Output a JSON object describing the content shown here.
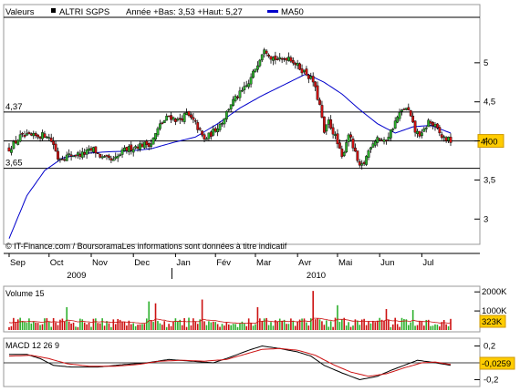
{
  "header": {
    "label": "Valeurs",
    "symbol": "ALTRI SGPS",
    "range_text": "Année +Bas: 3,53 +Haut: 5,27",
    "ma_label": "MA50",
    "ma_color": "#0000cc"
  },
  "source_note": "© IT-Finance.com / BoursoramaLes informations sont données à titre indicatif",
  "chart_data": [
    {
      "type": "candlestick",
      "title": "ALTRI SGPS",
      "x_months": [
        "Sep",
        "Oct",
        "Nov",
        "Dec",
        "Jan",
        "Fév",
        "Mar",
        "Avr",
        "Mai",
        "Jun",
        "Jul"
      ],
      "x_years": [
        "2009",
        "2010"
      ],
      "ylim": [
        2.7,
        5.5
      ],
      "yticks": [
        "5",
        "4,5",
        "4",
        "3,5",
        "3"
      ],
      "grid": false,
      "reference_lines": [
        {
          "value": 4.37,
          "label": "4,37"
        },
        {
          "value": 4.0,
          "label": "4,00",
          "badge": true
        },
        {
          "value": 3.65,
          "label": "3,65"
        }
      ],
      "last_value_label": "4,00",
      "candle_colors": {
        "up": "#2db02d",
        "down": "#cc1111"
      },
      "anchors": [
        [
          0,
          3.9
        ],
        [
          5,
          4.05
        ],
        [
          12,
          4.06
        ],
        [
          17,
          4.08
        ],
        [
          20,
          3.96
        ],
        [
          22,
          3.78
        ],
        [
          28,
          3.82
        ],
        [
          33,
          3.83
        ],
        [
          38,
          3.89
        ],
        [
          42,
          3.78
        ],
        [
          47,
          3.74
        ],
        [
          52,
          3.88
        ],
        [
          58,
          3.94
        ],
        [
          64,
          3.97
        ],
        [
          68,
          4.2
        ],
        [
          72,
          4.32
        ],
        [
          76,
          4.26
        ],
        [
          80,
          4.34
        ],
        [
          84,
          4.22
        ],
        [
          88,
          4.01
        ],
        [
          92,
          4.12
        ],
        [
          96,
          4.25
        ],
        [
          100,
          4.48
        ],
        [
          104,
          4.6
        ],
        [
          108,
          4.73
        ],
        [
          112,
          5.0
        ],
        [
          115,
          5.2
        ],
        [
          118,
          5.08
        ],
        [
          122,
          5.03
        ],
        [
          126,
          5.08
        ],
        [
          130,
          4.96
        ],
        [
          134,
          4.86
        ],
        [
          137,
          4.76
        ],
        [
          140,
          4.45
        ],
        [
          142,
          4.1
        ],
        [
          144,
          4.25
        ],
        [
          147,
          4.05
        ],
        [
          150,
          3.78
        ],
        [
          153,
          4.1
        ],
        [
          156,
          3.83
        ],
        [
          158,
          3.65
        ],
        [
          160,
          3.72
        ],
        [
          163,
          3.95
        ],
        [
          166,
          4.05
        ],
        [
          169,
          3.98
        ],
        [
          172,
          4.12
        ],
        [
          175,
          4.3
        ],
        [
          178,
          4.42
        ],
        [
          180,
          4.38
        ],
        [
          183,
          4.12
        ],
        [
          186,
          4.07
        ],
        [
          189,
          4.25
        ],
        [
          192,
          4.18
        ],
        [
          195,
          4.05
        ],
        [
          199,
          4.0
        ]
      ],
      "ma50_anchors": [
        [
          0,
          2.75
        ],
        [
          8,
          3.3
        ],
        [
          16,
          3.62
        ],
        [
          24,
          3.78
        ],
        [
          34,
          3.84
        ],
        [
          44,
          3.86
        ],
        [
          54,
          3.87
        ],
        [
          64,
          3.9
        ],
        [
          74,
          3.98
        ],
        [
          84,
          4.05
        ],
        [
          94,
          4.22
        ],
        [
          104,
          4.42
        ],
        [
          114,
          4.58
        ],
        [
          124,
          4.72
        ],
        [
          134,
          4.86
        ],
        [
          142,
          4.75
        ],
        [
          150,
          4.6
        ],
        [
          158,
          4.4
        ],
        [
          166,
          4.22
        ],
        [
          174,
          4.1
        ],
        [
          182,
          4.18
        ],
        [
          190,
          4.2
        ],
        [
          199,
          4.1
        ]
      ]
    },
    {
      "type": "bar",
      "title": "Volume 15",
      "yticks": [
        "2000K",
        "1000K"
      ],
      "ylim": [
        0,
        2200
      ],
      "last_value_label": "323K",
      "colors": {
        "up": "#2db02d",
        "down": "#cc1111",
        "avg_line": "#cc1111"
      },
      "typical_volume": 420,
      "spikes": [
        [
          26,
          1200
        ],
        [
          63,
          1500
        ],
        [
          66,
          1400
        ],
        [
          87,
          1600
        ],
        [
          112,
          1200
        ],
        [
          137,
          2050
        ],
        [
          148,
          1300
        ],
        [
          170,
          1100
        ],
        [
          182,
          1050
        ]
      ]
    },
    {
      "type": "line",
      "title": "MACD 12 26 9",
      "yticks": [
        "0,2",
        "-0,2"
      ],
      "ylim": [
        -0.26,
        0.26
      ],
      "last_value_label": "-0,0259",
      "series": [
        {
          "name": "MACD",
          "color": "#000000",
          "anchors": [
            [
              0,
              0.1
            ],
            [
              8,
              0.1
            ],
            [
              14,
              0.05
            ],
            [
              20,
              -0.03
            ],
            [
              28,
              -0.05
            ],
            [
              40,
              -0.05
            ],
            [
              52,
              -0.02
            ],
            [
              62,
              0.0
            ],
            [
              72,
              0.04
            ],
            [
              82,
              0.02
            ],
            [
              92,
              0.0
            ],
            [
              100,
              0.07
            ],
            [
              108,
              0.15
            ],
            [
              114,
              0.2
            ],
            [
              122,
              0.17
            ],
            [
              130,
              0.13
            ],
            [
              136,
              0.08
            ],
            [
              142,
              -0.03
            ],
            [
              150,
              -0.12
            ],
            [
              158,
              -0.2
            ],
            [
              166,
              -0.16
            ],
            [
              172,
              -0.09
            ],
            [
              178,
              -0.03
            ],
            [
              184,
              0.03
            ],
            [
              190,
              0.01
            ],
            [
              199,
              -0.03
            ]
          ]
        },
        {
          "name": "Signal",
          "color": "#cc1111",
          "anchors": [
            [
              0,
              0.08
            ],
            [
              10,
              0.09
            ],
            [
              18,
              0.05
            ],
            [
              26,
              -0.01
            ],
            [
              36,
              -0.04
            ],
            [
              48,
              -0.04
            ],
            [
              58,
              -0.02
            ],
            [
              68,
              0.02
            ],
            [
              78,
              0.03
            ],
            [
              88,
              0.02
            ],
            [
              98,
              0.04
            ],
            [
              106,
              0.1
            ],
            [
              114,
              0.16
            ],
            [
              122,
              0.17
            ],
            [
              130,
              0.15
            ],
            [
              138,
              0.09
            ],
            [
              146,
              -0.02
            ],
            [
              154,
              -0.11
            ],
            [
              162,
              -0.16
            ],
            [
              170,
              -0.13
            ],
            [
              178,
              -0.06
            ],
            [
              186,
              0.0
            ],
            [
              192,
              0.01
            ],
            [
              199,
              -0.02
            ]
          ]
        }
      ]
    }
  ]
}
